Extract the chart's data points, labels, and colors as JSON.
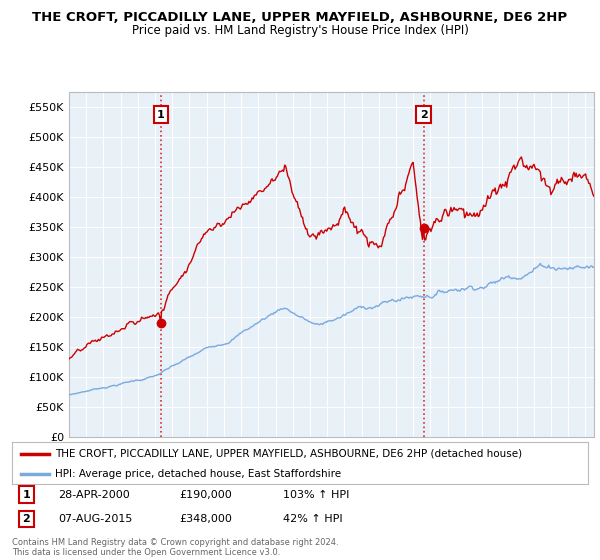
{
  "title": "THE CROFT, PICCADILLY LANE, UPPER MAYFIELD, ASHBOURNE, DE6 2HP",
  "subtitle": "Price paid vs. HM Land Registry's House Price Index (HPI)",
  "red_label": "THE CROFT, PICCADILLY LANE, UPPER MAYFIELD, ASHBOURNE, DE6 2HP (detached house)",
  "blue_label": "HPI: Average price, detached house, East Staffordshire",
  "annotation1": {
    "num": "1",
    "date": "28-APR-2000",
    "price": "£190,000",
    "pct": "103% ↑ HPI"
  },
  "annotation2": {
    "num": "2",
    "date": "07-AUG-2015",
    "price": "£348,000",
    "pct": "42% ↑ HPI"
  },
  "footer": "Contains HM Land Registry data © Crown copyright and database right 2024.\nThis data is licensed under the Open Government Licence v3.0.",
  "ylim": [
    0,
    575000
  ],
  "yticks": [
    0,
    50000,
    100000,
    150000,
    200000,
    250000,
    300000,
    350000,
    400000,
    450000,
    500000,
    550000
  ],
  "ytick_labels": [
    "£0",
    "£50K",
    "£100K",
    "£150K",
    "£200K",
    "£250K",
    "£300K",
    "£350K",
    "£400K",
    "£450K",
    "£500K",
    "£550K"
  ],
  "red_color": "#cc0000",
  "blue_color": "#7aaadd",
  "chart_bg": "#e8f0f8",
  "marker1_x": 2000.33,
  "marker1_y": 190000,
  "marker2_x": 2015.6,
  "marker2_y": 348000,
  "vline1_x": 2000.33,
  "vline2_x": 2015.6,
  "xmin": 1995,
  "xmax": 2025.5
}
